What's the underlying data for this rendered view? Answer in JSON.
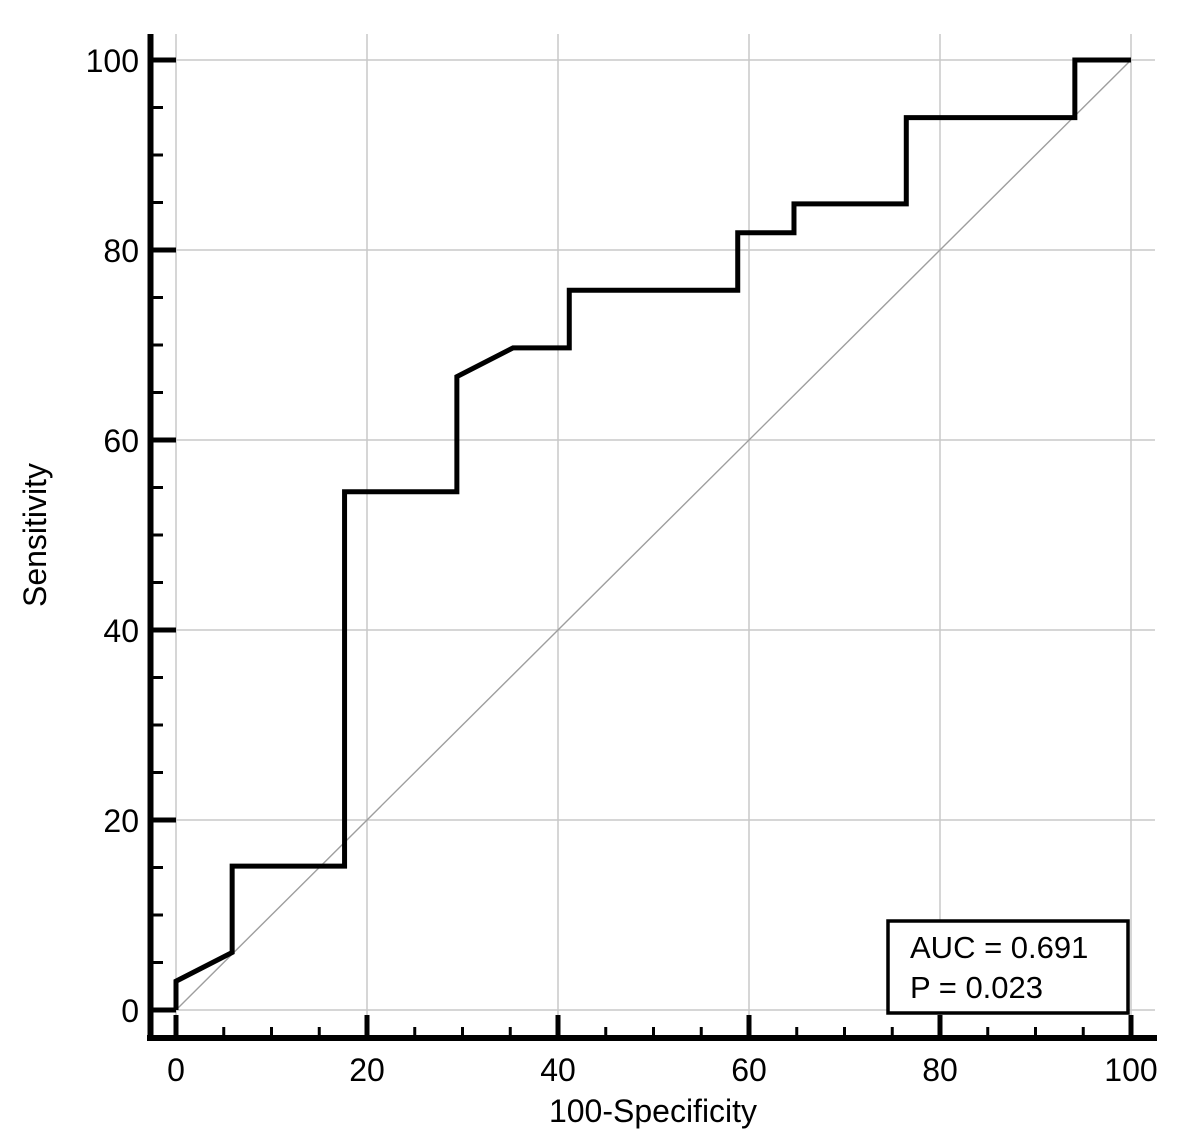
{
  "axes": {
    "x_label": "100-Specificity",
    "y_label": "Sensitivity",
    "x_tick_labels": [
      "0",
      "20",
      "40",
      "60",
      "80",
      "100"
    ],
    "y_tick_labels": [
      "0",
      "20",
      "40",
      "60",
      "80",
      "100"
    ]
  },
  "annotation_box": {
    "line1": "AUC = 0.691",
    "line2": "P = 0.023"
  },
  "colors": {
    "curve": "#000000",
    "axis": "#000000",
    "grid": "#c9c9c9",
    "diagonal": "#9e9e9e",
    "text": "#000000",
    "box_fill": "#ffffff",
    "background": "#ffffff"
  },
  "chart_data": {
    "type": "line",
    "subtype": "ROC curve (step plot)",
    "title": "",
    "xlabel": "100-Specificity",
    "ylabel": "Sensitivity",
    "xlim": [
      0,
      100
    ],
    "ylim": [
      0,
      100
    ],
    "x_major_ticks": [
      0,
      20,
      40,
      60,
      80,
      100
    ],
    "y_major_ticks": [
      0,
      20,
      40,
      60,
      80,
      100
    ],
    "minor_tick_step": 5,
    "grid": "major gridlines on, light gray",
    "legend_position": "none",
    "series": [
      {
        "name": "ROC curve",
        "style": "thick black step line",
        "x": [
          0,
          0,
          5.88,
          5.88,
          17.65,
          17.65,
          29.41,
          29.41,
          35.29,
          41.18,
          41.18,
          58.82,
          58.82,
          64.71,
          64.71,
          76.47,
          76.47,
          94.12,
          94.12,
          100
        ],
        "y": [
          0,
          3.03,
          6.06,
          15.15,
          15.15,
          54.55,
          54.55,
          66.67,
          69.7,
          69.7,
          75.76,
          75.76,
          81.82,
          81.82,
          84.85,
          84.85,
          93.94,
          93.94,
          100,
          100
        ]
      },
      {
        "name": "Reference diagonal (chance line)",
        "style": "thin gray line",
        "x": [
          0,
          100
        ],
        "y": [
          0,
          100
        ]
      }
    ],
    "annotations": [
      {
        "text": "AUC = 0.691",
        "position": "boxed, lower right"
      },
      {
        "text": "P = 0.023",
        "position": "boxed, lower right"
      }
    ]
  }
}
